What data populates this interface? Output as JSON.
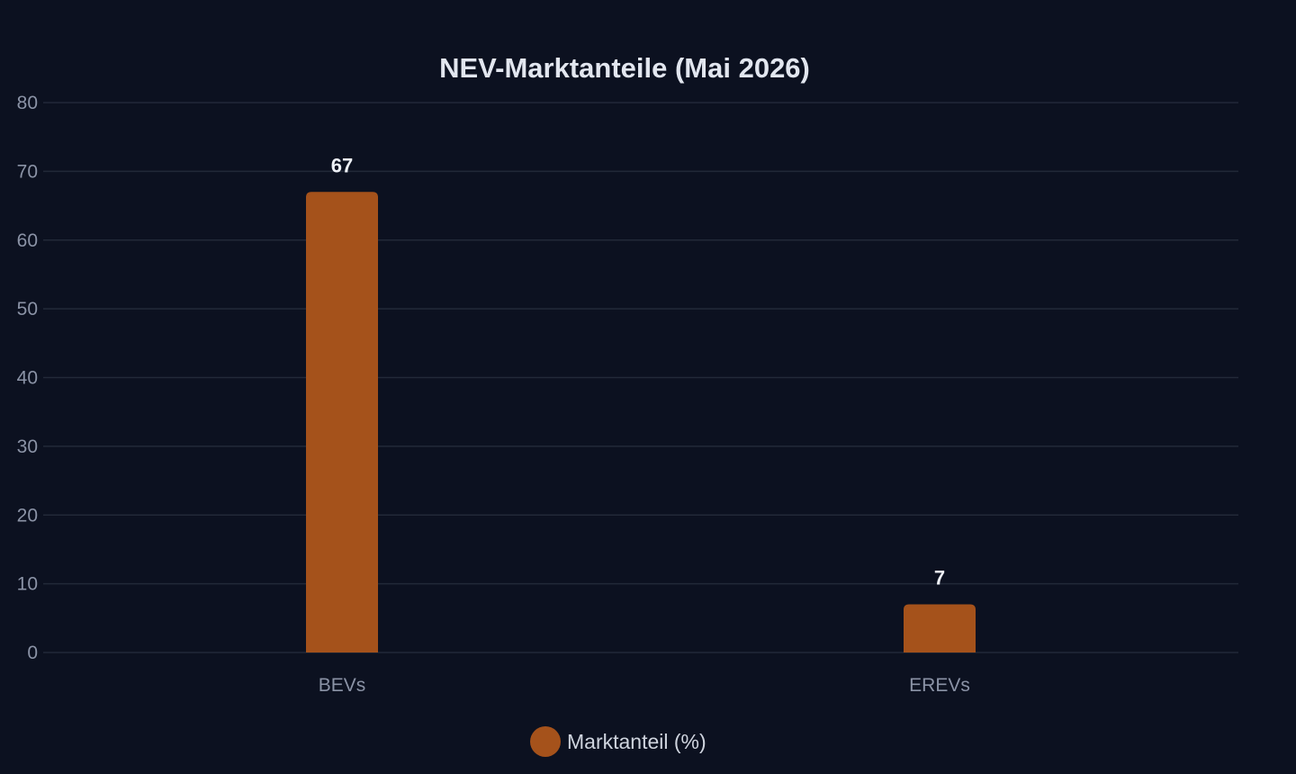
{
  "chart_data": {
    "type": "bar",
    "title": "NEV-Marktanteile (Mai 2026)",
    "xlabel": "",
    "ylabel": "",
    "categories": [
      "BEVs",
      "EREVs"
    ],
    "series": [
      {
        "name": "Marktanteil (%)",
        "values": [
          67,
          7
        ],
        "color": "#a5521b"
      }
    ],
    "ylim": [
      0,
      80
    ],
    "yticks": [
      0,
      10,
      20,
      30,
      40,
      50,
      60,
      70,
      80
    ],
    "grid": true,
    "legend": "bottom-center",
    "data_labels": true
  },
  "colors": {
    "background": "#0c1120",
    "grid": "#222938",
    "bar": "#a5521b",
    "title": "#e2e6ef",
    "tick": "#8b93a6",
    "data_label": "#eef1f7"
  }
}
